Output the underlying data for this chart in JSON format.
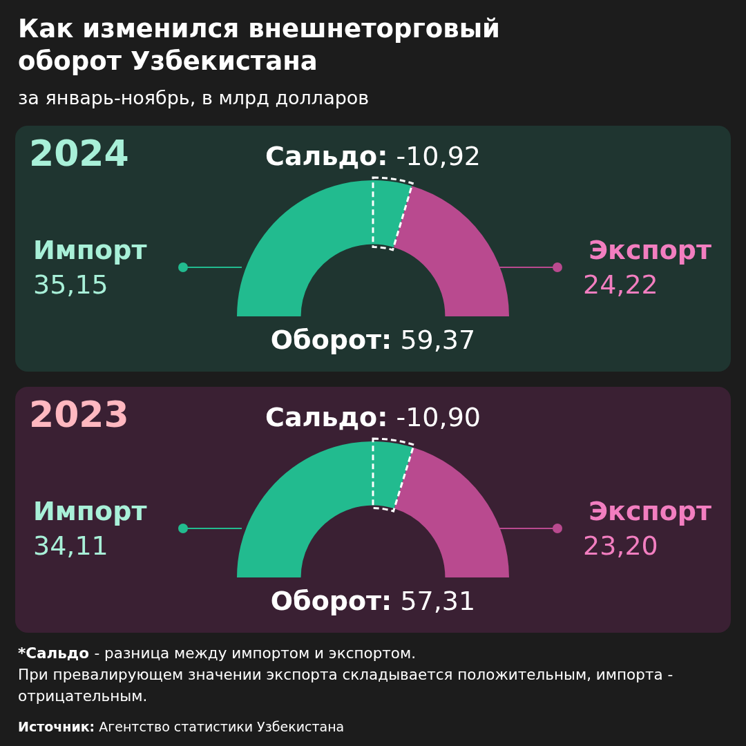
{
  "chart_data": [
    {
      "type": "other",
      "title": "Как изменился внешнеторговый оборот Узбекистана",
      "subtitle": "за январь-ноябрь, в млрд долларов"
    },
    {
      "type": "donut",
      "title": "2024",
      "categories": [
        "Импорт",
        "Экспорт"
      ],
      "values": [
        35.15,
        24.22
      ],
      "colors": [
        "#22bb8f",
        "#b94a8f"
      ],
      "value_labels": [
        "35,15",
        "24,22"
      ],
      "annotations": [
        "Сальдо: -10,92",
        "Оборот: 59,37"
      ]
    },
    {
      "type": "donut",
      "title": "2023",
      "categories": [
        "Импорт",
        "Экспорт"
      ],
      "values": [
        34.11,
        23.2
      ],
      "colors": [
        "#22bb8f",
        "#b94a8f"
      ],
      "value_labels": [
        "34,11",
        "23,20"
      ],
      "annotations": [
        "Сальдо: -10,90",
        "Оборот: 57,31"
      ]
    },
    {
      "type": "other",
      "annotations": [
        "*Сальдо - разница между импортом и экспортом.\nПри превалирующем значении экспорта складывается положительным, импорта - отрицательным.",
        "Источник: Агентство статистики Узбекистана"
      ]
    }
  ]
}
